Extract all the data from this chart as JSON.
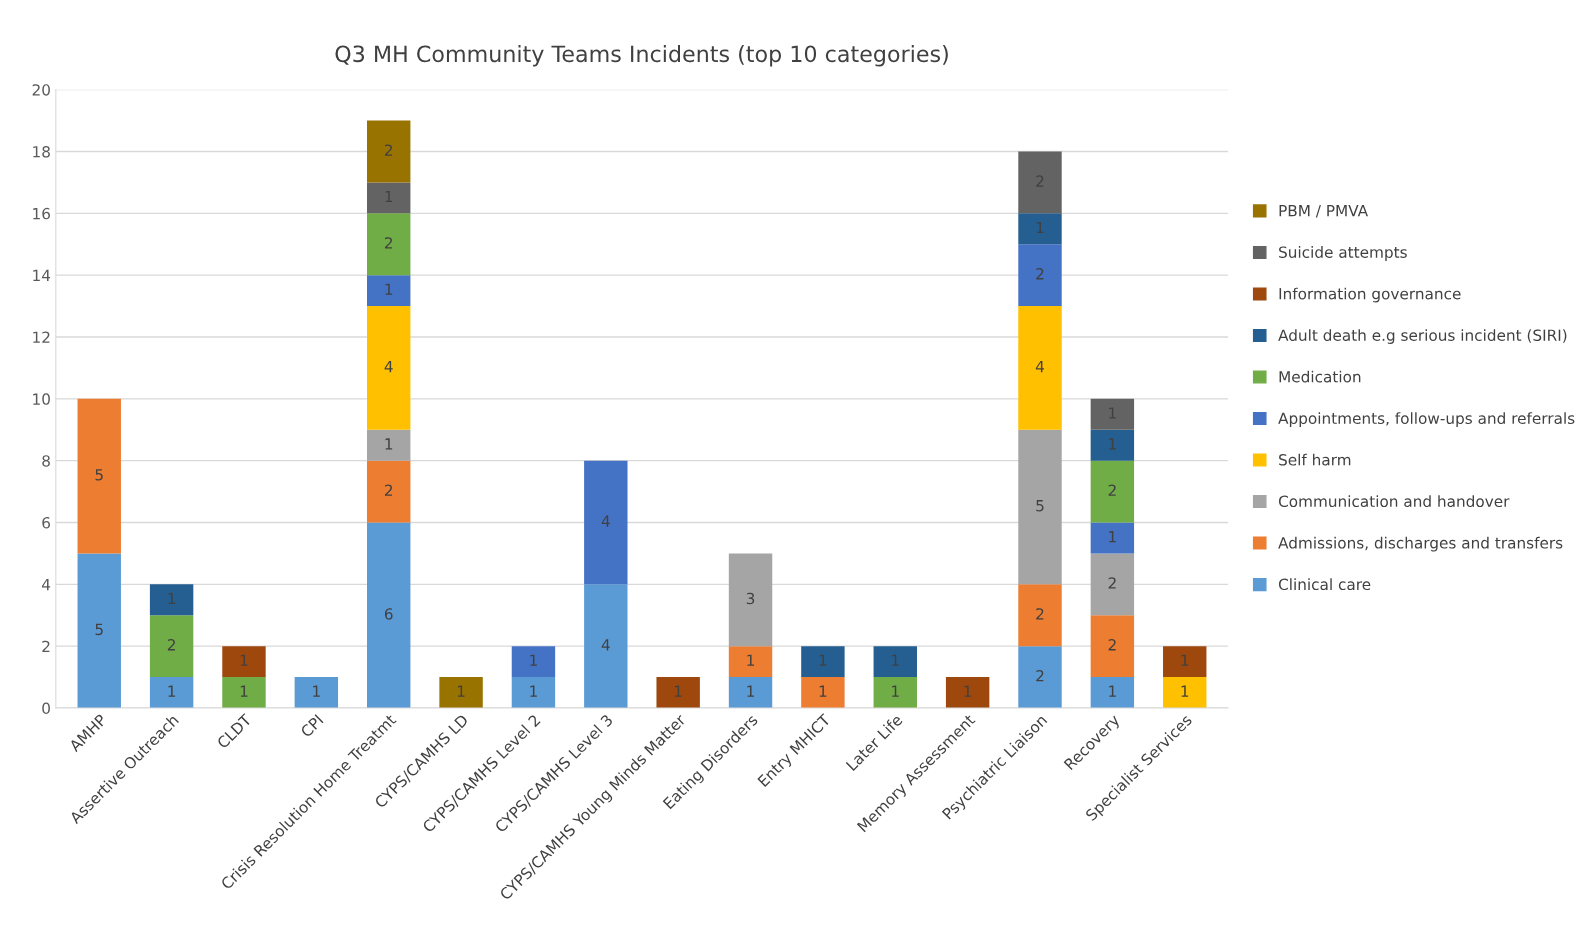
{
  "chart_data": {
    "type": "bar",
    "stacked": true,
    "title": "Q3 MH Community Teams Incidents (top 10 categories)",
    "categories": [
      "AMHP",
      "Assertive Outreach",
      "CLDT",
      "CPI",
      "Crisis Resolution Home Treatmt",
      "CYPS/CAMHS LD",
      "CYPS/CAMHS Level 2",
      "CYPS/CAMHS Level 3",
      "CYPS/CAMHS Young Minds Matter",
      "Eating Disorders",
      "Entry MHICT",
      "Later Life",
      "Memory Assessment",
      "Psychiatric Liaison",
      "Recovery",
      "Specialist Services"
    ],
    "series": [
      {
        "name": "Clinical care",
        "color": "#5b9bd5",
        "values": [
          5,
          1,
          null,
          1,
          6,
          null,
          1,
          4,
          null,
          1,
          null,
          null,
          null,
          2,
          1,
          null
        ]
      },
      {
        "name": "Admissions, discharges and transfers",
        "color": "#ed7d31",
        "values": [
          5,
          null,
          null,
          null,
          2,
          null,
          null,
          null,
          null,
          1,
          1,
          null,
          null,
          2,
          2,
          null
        ]
      },
      {
        "name": "Communication and handover",
        "color": "#a5a5a5",
        "values": [
          null,
          null,
          null,
          null,
          1,
          null,
          null,
          null,
          null,
          3,
          null,
          null,
          null,
          5,
          2,
          null
        ]
      },
      {
        "name": "Self harm",
        "color": "#ffc000",
        "values": [
          null,
          null,
          null,
          null,
          4,
          null,
          null,
          null,
          null,
          null,
          null,
          null,
          null,
          4,
          null,
          1
        ]
      },
      {
        "name": "Appointments, follow-ups and referrals",
        "color": "#4472c4",
        "values": [
          null,
          null,
          null,
          null,
          1,
          null,
          1,
          4,
          null,
          null,
          null,
          null,
          null,
          2,
          1,
          null
        ]
      },
      {
        "name": "Medication",
        "color": "#70ad47",
        "values": [
          null,
          2,
          1,
          null,
          2,
          null,
          null,
          null,
          null,
          null,
          null,
          1,
          null,
          null,
          2,
          null
        ]
      },
      {
        "name": "Adult death e.g serious incident (SIRI)",
        "color": "#255e91",
        "values": [
          null,
          1,
          null,
          null,
          null,
          null,
          null,
          null,
          null,
          null,
          1,
          1,
          null,
          1,
          1,
          null
        ]
      },
      {
        "name": "Information governance",
        "color": "#9e480e",
        "values": [
          null,
          null,
          1,
          null,
          null,
          null,
          null,
          null,
          1,
          null,
          null,
          null,
          1,
          null,
          null,
          1
        ]
      },
      {
        "name": "Suicide attempts",
        "color": "#636363",
        "values": [
          null,
          null,
          null,
          null,
          1,
          null,
          null,
          null,
          null,
          null,
          null,
          null,
          null,
          2,
          1,
          null
        ]
      },
      {
        "name": "PBM / PMVA",
        "color": "#997300",
        "values": [
          null,
          null,
          null,
          null,
          2,
          1,
          null,
          null,
          null,
          null,
          null,
          null,
          null,
          null,
          null,
          null
        ]
      }
    ],
    "ylim": [
      0,
      20
    ],
    "yticks": [
      0,
      2,
      4,
      6,
      8,
      10,
      12,
      14,
      16,
      18,
      20
    ],
    "grid": "y",
    "legend": "right",
    "data_labels": true
  }
}
